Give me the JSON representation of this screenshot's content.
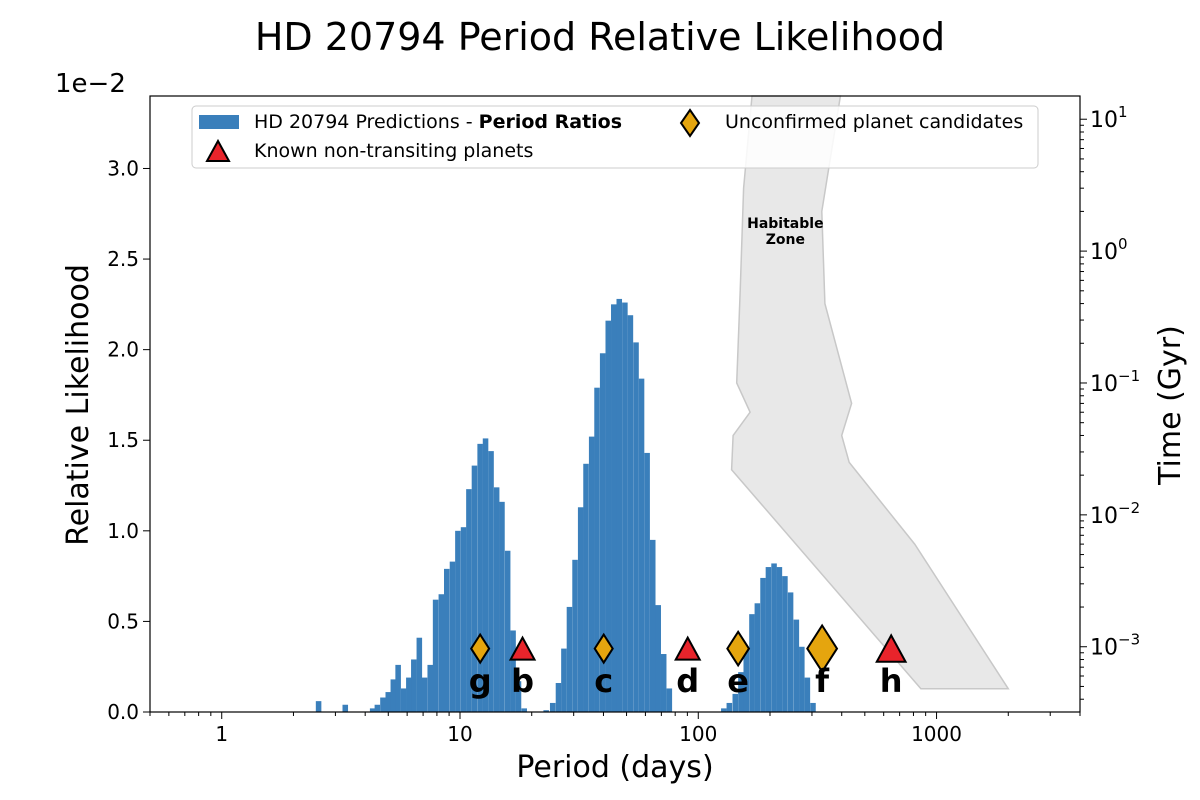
{
  "chart_data": {
    "type": "bar",
    "title": "HD 20794 Period Relative Likelihood",
    "xlabel": "Period (days)",
    "ylabel": "Relative Likelihood",
    "y2label": "Time (Gyr)",
    "y_offset_text": "1e−2",
    "x_scale": "log",
    "xlim": [
      0.5,
      4000
    ],
    "ylim": [
      0,
      0.034
    ],
    "y2_scale": "log",
    "y2lim": [
      0.00032,
      15
    ],
    "x_ticks": [
      {
        "value": 1,
        "label": "1"
      },
      {
        "value": 10,
        "label": "10"
      },
      {
        "value": 100,
        "label": "100"
      },
      {
        "value": 1000,
        "label": "1000"
      }
    ],
    "y_ticks": [
      {
        "value": 0.0,
        "label": "0.0"
      },
      {
        "value": 0.005,
        "label": "0.5"
      },
      {
        "value": 0.01,
        "label": "1.0"
      },
      {
        "value": 0.015,
        "label": "1.5"
      },
      {
        "value": 0.02,
        "label": "2.0"
      },
      {
        "value": 0.025,
        "label": "2.5"
      },
      {
        "value": 0.03,
        "label": "3.0"
      }
    ],
    "y2_ticks": [
      {
        "value": 0.001,
        "base": "10",
        "exp": "−3"
      },
      {
        "value": 0.01,
        "base": "10",
        "exp": "−2"
      },
      {
        "value": 0.1,
        "base": "10",
        "exp": "−1"
      },
      {
        "value": 1,
        "base": "10",
        "exp": "0"
      },
      {
        "value": 10,
        "base": "10",
        "exp": "1"
      }
    ],
    "series": [
      {
        "name": "HD 20794 Predictions - ",
        "name_bold": "Period Ratios",
        "color": "#3a7fbb",
        "bins": [
          [
            2.55,
            0.0006
          ],
          [
            3.3,
            0.0004
          ],
          [
            4.3,
            0.0002
          ],
          [
            4.5,
            0.0004
          ],
          [
            4.75,
            0.0008
          ],
          [
            5.0,
            0.0011
          ],
          [
            5.25,
            0.0018
          ],
          [
            5.5,
            0.0026
          ],
          [
            5.8,
            0.0013
          ],
          [
            6.1,
            0.0019
          ],
          [
            6.4,
            0.0029
          ],
          [
            6.75,
            0.0041
          ],
          [
            7.1,
            0.0019
          ],
          [
            7.5,
            0.0026
          ],
          [
            7.9,
            0.0062
          ],
          [
            8.35,
            0.0065
          ],
          [
            8.8,
            0.0079
          ],
          [
            9.3,
            0.0083
          ],
          [
            9.8,
            0.01
          ],
          [
            10.35,
            0.0102
          ],
          [
            10.9,
            0.0123
          ],
          [
            11.5,
            0.0136
          ],
          [
            12.15,
            0.0148
          ],
          [
            12.8,
            0.0151
          ],
          [
            13.5,
            0.0144
          ],
          [
            14.25,
            0.0124
          ],
          [
            15.0,
            0.0116
          ],
          [
            15.85,
            0.0089
          ],
          [
            16.7,
            0.0045
          ],
          [
            17.6,
            0.0017
          ],
          [
            18.6,
            0.0002
          ],
          [
            23.0,
            0.0001
          ],
          [
            24.5,
            0.0005
          ],
          [
            25.9,
            0.0016
          ],
          [
            27.3,
            0.0035
          ],
          [
            28.8,
            0.0058
          ],
          [
            30.4,
            0.0084
          ],
          [
            32.1,
            0.0113
          ],
          [
            33.8,
            0.0137
          ],
          [
            35.7,
            0.0152
          ],
          [
            37.6,
            0.0179
          ],
          [
            39.7,
            0.0198
          ],
          [
            41.9,
            0.0216
          ],
          [
            44.2,
            0.0225
          ],
          [
            46.6,
            0.0228
          ],
          [
            49.2,
            0.0226
          ],
          [
            51.9,
            0.0219
          ],
          [
            54.8,
            0.0204
          ],
          [
            57.8,
            0.0184
          ],
          [
            61.0,
            0.0143
          ],
          [
            64.4,
            0.0095
          ],
          [
            67.9,
            0.0059
          ],
          [
            71.6,
            0.0032
          ],
          [
            75.6,
            0.0013
          ],
          [
            128,
            0.0002
          ],
          [
            135,
            0.0005
          ],
          [
            143,
            0.001
          ],
          [
            151,
            0.0022
          ],
          [
            159,
            0.0036
          ],
          [
            168,
            0.0054
          ],
          [
            177,
            0.006
          ],
          [
            187,
            0.0074
          ],
          [
            197,
            0.008
          ],
          [
            208,
            0.0082
          ],
          [
            219,
            0.008
          ],
          [
            231,
            0.0075
          ],
          [
            244,
            0.0066
          ],
          [
            258,
            0.0051
          ],
          [
            272,
            0.0036
          ],
          [
            287,
            0.0019
          ],
          [
            303,
            0.0005
          ]
        ]
      }
    ],
    "planets": [
      {
        "letter": "g",
        "period": 12.15,
        "type": "candidate",
        "size": 1.0
      },
      {
        "letter": "b",
        "period": 18.3,
        "type": "known",
        "size": 1.0
      },
      {
        "letter": "c",
        "period": 40.1,
        "type": "candidate",
        "size": 1.0
      },
      {
        "letter": "d",
        "period": 90.3,
        "type": "known",
        "size": 1.0
      },
      {
        "letter": "e",
        "period": 147.0,
        "type": "candidate",
        "size": 1.2
      },
      {
        "letter": "f",
        "period": 331.0,
        "type": "candidate",
        "size": 1.65
      },
      {
        "letter": "h",
        "period": 645.0,
        "type": "known",
        "size": 1.2
      }
    ],
    "planet_marker_y": 0.0035,
    "planet_letter_y": 0.0017,
    "legend": {
      "position": "upper-center",
      "entries": [
        {
          "label": "HD 20794 Predictions - ",
          "bold": "Period Ratios",
          "marker": "bar",
          "color": "#3a7fbb"
        },
        {
          "label": "Unconfirmed planet candidates",
          "marker": "diamond",
          "color": "#e5a50e"
        },
        {
          "label": "Known non-transiting planets",
          "marker": "triangle",
          "color": "#e8242b"
        }
      ]
    },
    "habitable_zone": {
      "label_line1": "Habitable",
      "label_line2": "Zone",
      "label_period": 232,
      "label_time": 1.5,
      "color": "#e8e8e8",
      "edge_color": "#c8c8c8",
      "boundary": [
        [
          860,
          0.00048
        ],
        [
          2000,
          0.00048
        ],
        [
          810,
          0.006
        ],
        [
          430,
          0.025
        ],
        [
          400,
          0.04
        ],
        [
          440,
          0.07
        ],
        [
          340,
          0.4
        ],
        [
          330,
          2
        ],
        [
          395,
          15
        ],
        [
          168,
          15
        ],
        [
          155,
          3
        ],
        [
          150,
          0.5
        ],
        [
          145,
          0.1
        ],
        [
          165,
          0.06
        ],
        [
          140,
          0.04
        ],
        [
          138,
          0.022
        ]
      ]
    },
    "colors": {
      "bar": "#3a7fbb",
      "known_planet": "#e8242b",
      "candidate": "#e5a50e"
    }
  }
}
